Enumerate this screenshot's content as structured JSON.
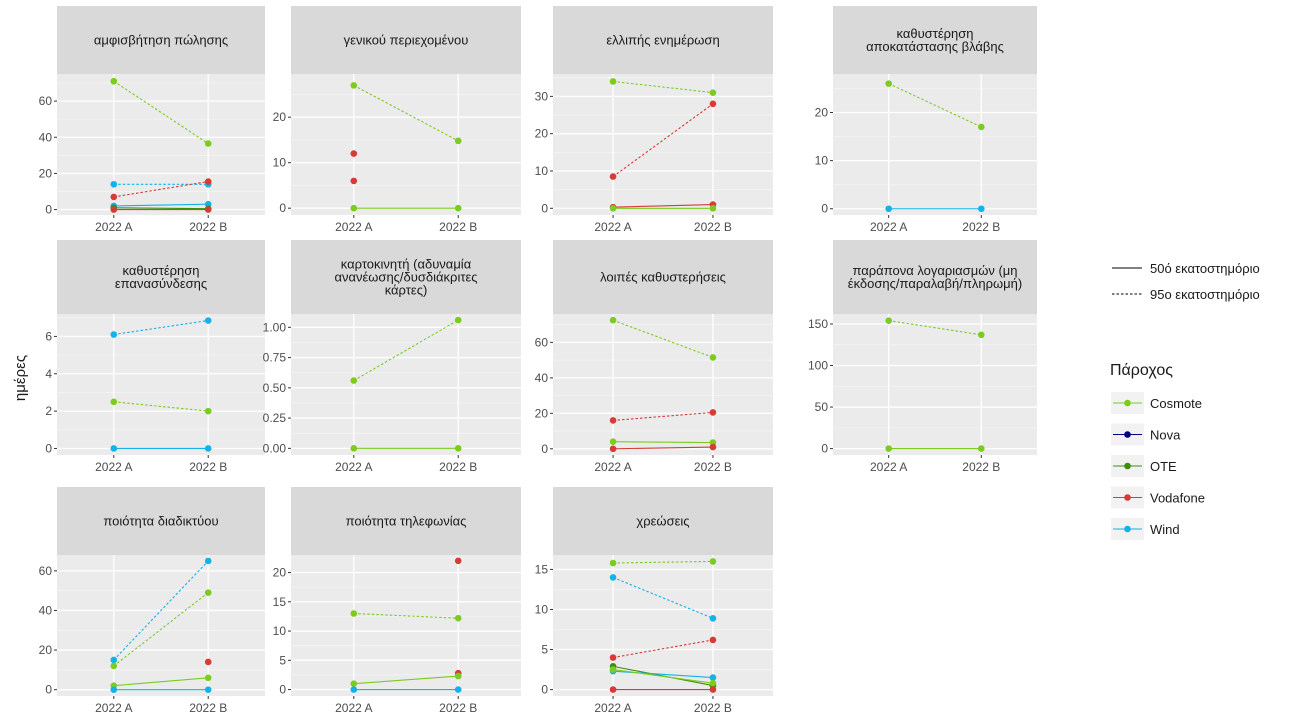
{
  "chart_data": {
    "type": "line",
    "ylabel": "ημέρες",
    "xlabel": "",
    "title": "",
    "categories": [
      "2022 A",
      "2022 B"
    ],
    "grid": true,
    "legend_position": "right",
    "linetype_legend": {
      "title": "",
      "entries": [
        {
          "label": "50ό εκατοστημόριο",
          "style": "solid"
        },
        {
          "label": "95ο εκατοστημόριο",
          "style": "dotted"
        }
      ]
    },
    "color_legend": {
      "title": "Πάροχος",
      "entries": [
        {
          "label": "Cosmote",
          "color": "#7ACC1F"
        },
        {
          "label": "Nova",
          "color": "#000080"
        },
        {
          "label": "OTE",
          "color": "#3E8E0C"
        },
        {
          "label": "Vodafone",
          "color": "#D63B34"
        },
        {
          "label": "Wind",
          "color": "#12B3EB"
        }
      ]
    },
    "panels": [
      {
        "title": [
          "αμφισβήτηση πώλησης"
        ],
        "ylim": [
          -3,
          75
        ],
        "yticks": [
          0,
          20,
          40,
          60
        ],
        "ytick_labels": [
          "0",
          "20",
          "40",
          "60"
        ],
        "series": [
          {
            "provider": "Cosmote",
            "percentile": "95",
            "values": [
              71,
              36.5
            ]
          },
          {
            "provider": "Wind",
            "percentile": "95",
            "values": [
              14,
              14
            ]
          },
          {
            "provider": "Vodafone",
            "percentile": "95",
            "values": [
              7,
              15.5
            ]
          },
          {
            "provider": "Wind",
            "percentile": "50",
            "values": [
              2,
              3
            ]
          },
          {
            "provider": "OTE",
            "percentile": "50",
            "values": [
              1,
              0.5
            ]
          },
          {
            "provider": "Vodafone",
            "percentile": "50",
            "values": [
              0,
              0
            ]
          }
        ]
      },
      {
        "title": [
          "γενικού περιεχομένου"
        ],
        "ylim": [
          -1.5,
          29.5
        ],
        "yticks": [
          0,
          10,
          20
        ],
        "ytick_labels": [
          "0",
          "10",
          "20"
        ],
        "series": [
          {
            "provider": "Cosmote",
            "percentile": "95",
            "values": [
              27,
              14.8
            ]
          },
          {
            "provider": "Vodafone",
            "percentile": "95",
            "values": [
              12,
              null
            ]
          },
          {
            "provider": "Vodafone",
            "percentile": "50",
            "values": [
              6,
              null
            ]
          },
          {
            "provider": "Cosmote",
            "percentile": "50",
            "values": [
              0,
              0
            ]
          }
        ]
      },
      {
        "title": [
          "ελλιπής ενημέρωση"
        ],
        "ylim": [
          -1.8,
          36
        ],
        "yticks": [
          0,
          10,
          20,
          30
        ],
        "ytick_labels": [
          "0",
          "10",
          "20",
          "30"
        ],
        "series": [
          {
            "provider": "Cosmote",
            "percentile": "95",
            "values": [
              34,
              31
            ]
          },
          {
            "provider": "Vodafone",
            "percentile": "95",
            "values": [
              8.5,
              28
            ]
          },
          {
            "provider": "Vodafone",
            "percentile": "50",
            "values": [
              0.3,
              1
            ]
          },
          {
            "provider": "Cosmote",
            "percentile": "50",
            "values": [
              0,
              0
            ]
          }
        ]
      },
      {
        "title": [
          "καθυστέρηση",
          "αποκατάστασης βλάβης"
        ],
        "ylim": [
          -1.3,
          28
        ],
        "yticks": [
          0,
          10,
          20
        ],
        "ytick_labels": [
          "0",
          "10",
          "20"
        ],
        "series": [
          {
            "provider": "Cosmote",
            "percentile": "95",
            "values": [
              26,
              17
            ]
          },
          {
            "provider": "Wind",
            "percentile": "50",
            "values": [
              0,
              0
            ]
          }
        ]
      },
      {
        "title": [
          "καθυστέρηση",
          "επανασύνδεσης"
        ],
        "ylim": [
          -0.35,
          7.2
        ],
        "yticks": [
          0,
          2,
          4,
          6
        ],
        "ytick_labels": [
          "0",
          "2",
          "4",
          "6"
        ],
        "series": [
          {
            "provider": "Wind",
            "percentile": "95",
            "values": [
              6.1,
              6.85
            ]
          },
          {
            "provider": "Cosmote",
            "percentile": "95",
            "values": [
              2.5,
              2
            ]
          },
          {
            "provider": "Wind",
            "percentile": "50",
            "values": [
              0,
              0
            ]
          }
        ]
      },
      {
        "title": [
          "καρτοκινητή (αδυναμία",
          "ανανέωσης/δυσδιάκριτες",
          "κάρτες)"
        ],
        "ylim": [
          -0.055,
          1.11
        ],
        "yticks": [
          0,
          0.25,
          0.5,
          0.75,
          1
        ],
        "ytick_labels": [
          "0.00",
          "0.25",
          "0.50",
          "0.75",
          "1.00"
        ],
        "series": [
          {
            "provider": "Cosmote",
            "percentile": "95",
            "values": [
              0.56,
              1.06
            ]
          },
          {
            "provider": "Cosmote",
            "percentile": "50",
            "values": [
              0,
              0
            ]
          }
        ]
      },
      {
        "title": [
          "λοιπές καθυστερήσεις"
        ],
        "ylim": [
          -3.5,
          76
        ],
        "yticks": [
          0,
          20,
          40,
          60
        ],
        "ytick_labels": [
          "0",
          "20",
          "40",
          "60"
        ],
        "series": [
          {
            "provider": "Cosmote",
            "percentile": "95",
            "values": [
              72.5,
              51.5
            ]
          },
          {
            "provider": "Vodafone",
            "percentile": "95",
            "values": [
              16,
              20.5
            ]
          },
          {
            "provider": "Cosmote",
            "percentile": "50",
            "values": [
              4,
              3.5
            ]
          },
          {
            "provider": "Vodafone",
            "percentile": "50",
            "values": [
              0,
              1
            ]
          }
        ]
      },
      {
        "title": [
          "παράπονα λογαριασμών (μη",
          "έκδοσης/παραλαβή/πληρωμή)"
        ],
        "ylim": [
          -7.7,
          162
        ],
        "yticks": [
          0,
          50,
          100,
          150
        ],
        "ytick_labels": [
          "0",
          "50",
          "100",
          "150"
        ],
        "series": [
          {
            "provider": "Cosmote",
            "percentile": "95",
            "values": [
              154,
              137
            ]
          },
          {
            "provider": "Cosmote",
            "percentile": "50",
            "values": [
              0,
              0
            ]
          }
        ]
      },
      {
        "title": [
          "ποιότητα διαδικτύου"
        ],
        "ylim": [
          -3.2,
          68
        ],
        "yticks": [
          0,
          20,
          40,
          60
        ],
        "ytick_labels": [
          "0",
          "20",
          "40",
          "60"
        ],
        "series": [
          {
            "provider": "Wind",
            "percentile": "95",
            "values": [
              15,
              65
            ]
          },
          {
            "provider": "Cosmote",
            "percentile": "95",
            "values": [
              12,
              49
            ]
          },
          {
            "provider": "Vodafone",
            "percentile": "95",
            "values": [
              null,
              14
            ]
          },
          {
            "provider": "Cosmote",
            "percentile": "50",
            "values": [
              2,
              6
            ]
          },
          {
            "provider": "Wind",
            "percentile": "50",
            "values": [
              0,
              0
            ]
          }
        ]
      },
      {
        "title": [
          "ποιότητα τηλεφωνίας"
        ],
        "ylim": [
          -1.1,
          23
        ],
        "yticks": [
          0,
          5,
          10,
          15,
          20
        ],
        "ytick_labels": [
          "0",
          "5",
          "10",
          "15",
          "20"
        ],
        "series": [
          {
            "provider": "Vodafone",
            "percentile": "95",
            "values": [
              null,
              22
            ]
          },
          {
            "provider": "Cosmote",
            "percentile": "95",
            "values": [
              13,
              12.2
            ]
          },
          {
            "provider": "Vodafone",
            "percentile": "50",
            "values": [
              null,
              2.8
            ]
          },
          {
            "provider": "Cosmote",
            "percentile": "50",
            "values": [
              1,
              2.3
            ]
          },
          {
            "provider": "Wind",
            "percentile": "50",
            "values": [
              0,
              0
            ]
          }
        ]
      },
      {
        "title": [
          "χρεώσεις"
        ],
        "ylim": [
          -0.8,
          16.8
        ],
        "yticks": [
          0,
          5,
          10,
          15
        ],
        "ytick_labels": [
          "0",
          "5",
          "10",
          "15"
        ],
        "series": [
          {
            "provider": "Cosmote",
            "percentile": "95",
            "values": [
              15.8,
              16
            ]
          },
          {
            "provider": "Wind",
            "percentile": "95",
            "values": [
              14,
              8.9
            ]
          },
          {
            "provider": "Vodafone",
            "percentile": "95",
            "values": [
              4,
              6.2
            ]
          },
          {
            "provider": "OTE",
            "percentile": "50",
            "values": [
              2.9,
              0.5
            ]
          },
          {
            "provider": "Wind",
            "percentile": "50",
            "values": [
              2.3,
              1.5
            ]
          },
          {
            "provider": "Cosmote",
            "percentile": "50",
            "values": [
              2.5,
              0.8
            ]
          },
          {
            "provider": "Vodafone",
            "percentile": "50",
            "values": [
              0,
              0
            ]
          }
        ]
      }
    ]
  }
}
